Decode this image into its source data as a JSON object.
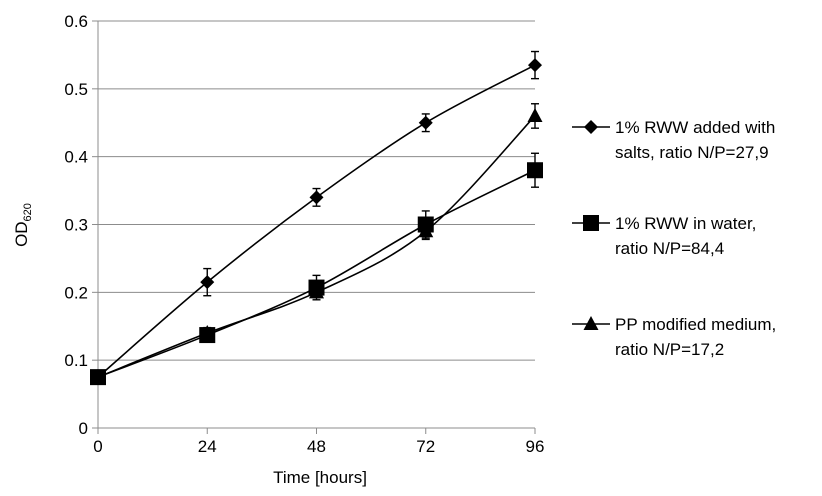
{
  "chart_data": {
    "type": "line",
    "xlabel": "Time [hours]",
    "ylabel": "OD",
    "ylabel_sub": "620",
    "x": [
      0,
      24,
      48,
      72,
      96
    ],
    "xticks": [
      "0",
      "24",
      "48",
      "72",
      "96"
    ],
    "yticks": [
      "0",
      "0.1",
      "0.2",
      "0.3",
      "0.4",
      "0.5",
      "0.6"
    ],
    "ylim": [
      0,
      0.6
    ],
    "xlim": [
      0,
      96
    ],
    "grid": "horizontal",
    "legend_position": "right",
    "series": [
      {
        "name": "1% RWW added with salts, ratio N/P=27,9",
        "legend_lines": [
          "1% RWW added with",
          "salts, ratio N/P=27,9"
        ],
        "marker": "diamond",
        "values": [
          0.075,
          0.215,
          0.34,
          0.45,
          0.535
        ],
        "errors": [
          0.005,
          0.02,
          0.013,
          0.013,
          0.02
        ]
      },
      {
        "name": "1% RWW in water, ratio N/P=84,4",
        "legend_lines": [
          "1% RWW in water,",
          "ratio N/P=84,4"
        ],
        "marker": "square",
        "values": [
          0.075,
          0.137,
          0.207,
          0.3,
          0.38
        ],
        "errors": [
          0.005,
          0.01,
          0.018,
          0.02,
          0.025
        ]
      },
      {
        "name": "PP modified medium, ratio N/P=17,2",
        "legend_lines": [
          "PP modified medium,",
          "ratio N/P=17,2"
        ],
        "marker": "triangle",
        "values": [
          0.075,
          0.14,
          0.2,
          0.29,
          0.46
        ],
        "errors": [
          0.005,
          0.008,
          0.008,
          0.012,
          0.018
        ]
      }
    ]
  }
}
